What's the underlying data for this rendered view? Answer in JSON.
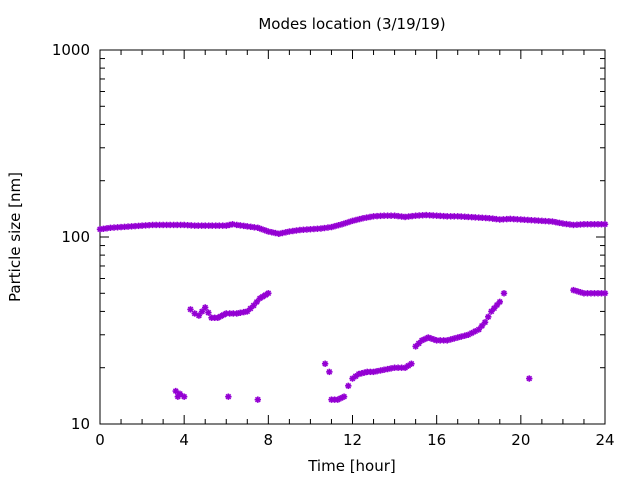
{
  "chart_data": {
    "type": "scatter",
    "title": "Modes location (3/19/19)",
    "xlabel": "Time [hour]",
    "ylabel": "Particle size [nm]",
    "xlim": [
      0,
      24
    ],
    "ylim": [
      10,
      1000
    ],
    "yscale": "log",
    "x_ticks": [
      0,
      4,
      8,
      12,
      16,
      20,
      24
    ],
    "x_tick_labels": [
      "0",
      "4",
      "8",
      "12",
      "16",
      "20",
      "24"
    ],
    "y_ticks": [
      10,
      100,
      1000
    ],
    "y_tick_labels": [
      "10",
      "100",
      "1000"
    ],
    "grid": false,
    "legend": "none",
    "marker_color": "#9400d3",
    "series": [
      {
        "points": [
          [
            0,
            110
          ],
          [
            0.5,
            112
          ],
          [
            1,
            113
          ],
          [
            1.5,
            114
          ],
          [
            2,
            115
          ],
          [
            2.5,
            116
          ],
          [
            3,
            116
          ],
          [
            3.5,
            116
          ],
          [
            4,
            116
          ],
          [
            4.5,
            115
          ],
          [
            5,
            115
          ],
          [
            5.5,
            115
          ],
          [
            6,
            115
          ],
          [
            6.3,
            117
          ],
          [
            6.5,
            116
          ],
          [
            7,
            114
          ],
          [
            7.5,
            112
          ],
          [
            8,
            107
          ],
          [
            8.5,
            104
          ],
          [
            9,
            107
          ],
          [
            9.5,
            109
          ],
          [
            10,
            110
          ],
          [
            10.5,
            111
          ],
          [
            11,
            113
          ],
          [
            11.5,
            117
          ],
          [
            12,
            122
          ],
          [
            12.5,
            126
          ],
          [
            13,
            129
          ],
          [
            13.5,
            130
          ],
          [
            14,
            130
          ],
          [
            14.5,
            128
          ],
          [
            15,
            130
          ],
          [
            15.5,
            131
          ],
          [
            16,
            130
          ],
          [
            16.5,
            129
          ],
          [
            17,
            129
          ],
          [
            17.5,
            128
          ],
          [
            18,
            127
          ],
          [
            18.5,
            126
          ],
          [
            19,
            124
          ],
          [
            19.5,
            125
          ],
          [
            20,
            124
          ],
          [
            20.5,
            123
          ],
          [
            21,
            122
          ],
          [
            21.5,
            121
          ],
          [
            22,
            118
          ],
          [
            22.5,
            116
          ],
          [
            23,
            117
          ],
          [
            23.5,
            117
          ],
          [
            24,
            117
          ]
        ]
      },
      {
        "points": [
          [
            4.3,
            41
          ],
          [
            4.5,
            39
          ],
          [
            4.7,
            38
          ],
          [
            5,
            42
          ],
          [
            5.3,
            37
          ],
          [
            5.6,
            37
          ],
          [
            6,
            39
          ],
          [
            6.5,
            39
          ],
          [
            7,
            40
          ],
          [
            7.3,
            43
          ],
          [
            7.6,
            47
          ],
          [
            8,
            50
          ],
          [
            15,
            26
          ],
          [
            15.3,
            28
          ],
          [
            15.6,
            29
          ],
          [
            16,
            28
          ],
          [
            16.5,
            28
          ],
          [
            17,
            29
          ],
          [
            17.5,
            30
          ],
          [
            18,
            32
          ],
          [
            18.3,
            35
          ],
          [
            18.6,
            40
          ],
          [
            19,
            45
          ],
          [
            19.2,
            50
          ],
          [
            22.5,
            52
          ],
          [
            23,
            50
          ],
          [
            23.5,
            50
          ],
          [
            24,
            50
          ]
        ]
      },
      {
        "points": [
          [
            3.6,
            15
          ],
          [
            3.7,
            14
          ],
          [
            3.8,
            14.5
          ],
          [
            4,
            14
          ],
          [
            6.1,
            14
          ],
          [
            7.5,
            13.5
          ],
          [
            10.7,
            21
          ],
          [
            10.9,
            19
          ],
          [
            11,
            13.5
          ],
          [
            11.3,
            13.5
          ],
          [
            11.6,
            14
          ],
          [
            11.8,
            16
          ],
          [
            12,
            17.5
          ],
          [
            12.3,
            18.5
          ],
          [
            12.7,
            19
          ],
          [
            13,
            19
          ],
          [
            13.5,
            19.5
          ],
          [
            14,
            20
          ],
          [
            14.5,
            20
          ],
          [
            14.8,
            21
          ],
          [
            20.4,
            17.5
          ]
        ]
      }
    ]
  }
}
